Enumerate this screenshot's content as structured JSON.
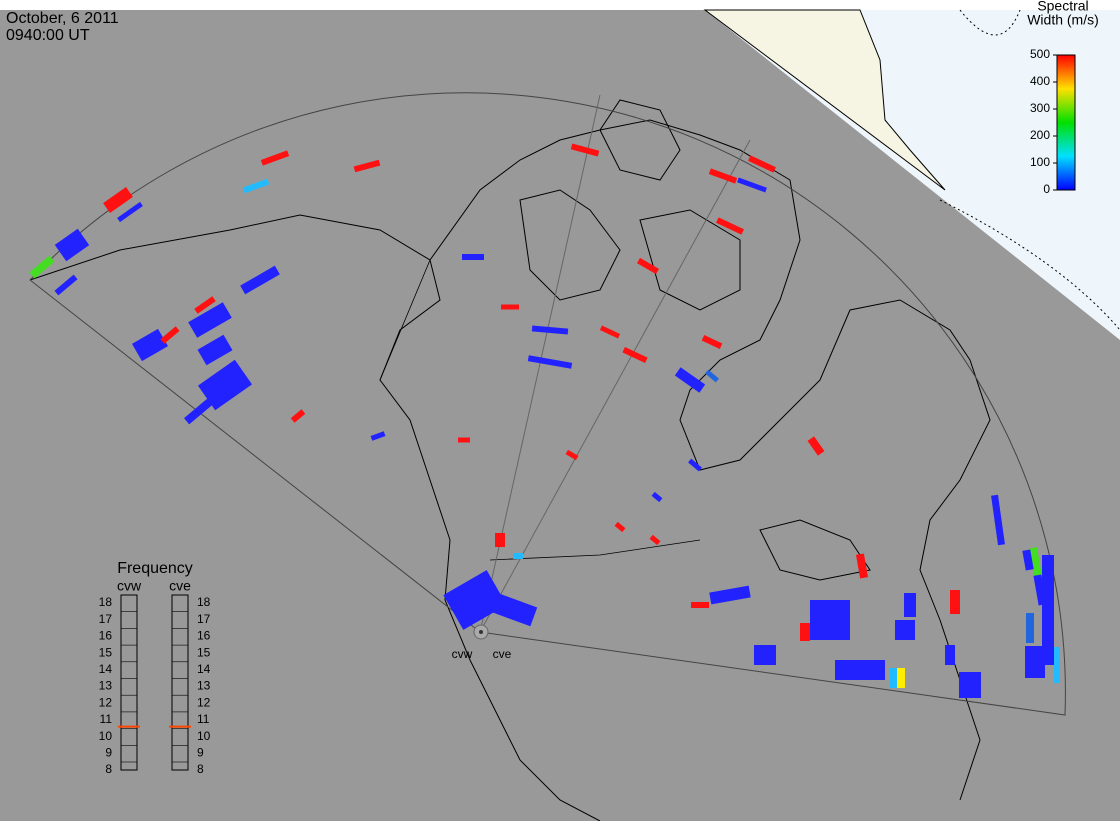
{
  "header": {
    "date": "October, 6 2011",
    "time": "0940:00 UT"
  },
  "colorbar": {
    "title": [
      "Spectral",
      "Width (m/s)"
    ],
    "range": [
      0,
      500
    ],
    "ticks": [
      0,
      100,
      200,
      300,
      400,
      500
    ],
    "colors": [
      "#0000ff",
      "#00e0ff",
      "#00e000",
      "#ffe000",
      "#ff0000"
    ]
  },
  "frequency": {
    "title": "Frequency",
    "range": [
      8,
      18
    ],
    "ticks": [
      8,
      9,
      10,
      11,
      12,
      13,
      14,
      15,
      16,
      17,
      18
    ],
    "marker_color": "#ff4500",
    "radars": [
      {
        "name": "cvw",
        "value": 10.6
      },
      {
        "name": "cve",
        "value": 10.6
      }
    ]
  },
  "stations": [
    "cvw",
    "cve"
  ]
}
